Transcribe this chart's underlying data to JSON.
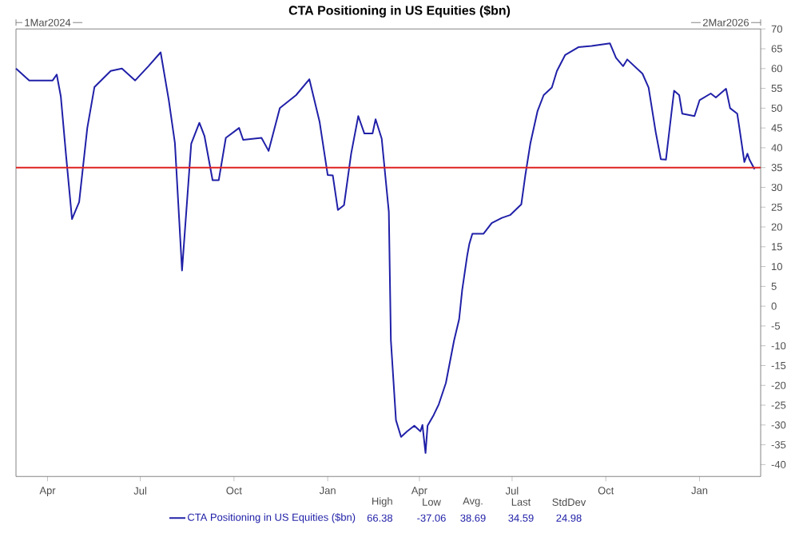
{
  "chart_data": {
    "type": "line",
    "title": "CTA Positioning in US Equities ($bn)",
    "xlim": [
      "2024-03-01",
      "2026-03-02"
    ],
    "ylim": [
      -43,
      70
    ],
    "xticks": [
      {
        "value": "2024-04-01",
        "label": "Apr"
      },
      {
        "value": "2024-07-01",
        "label": "Jul"
      },
      {
        "value": "2024-10-01",
        "label": "Oct"
      },
      {
        "value": "2025-01-01",
        "label": "Jan"
      },
      {
        "value": "2025-04-01",
        "label": "Apr"
      },
      {
        "value": "2025-07-01",
        "label": "Jul"
      },
      {
        "value": "2025-10-01",
        "label": "Oct"
      },
      {
        "value": "2026-01-01",
        "label": "Jan"
      }
    ],
    "yticks": [
      -40,
      -35,
      -30,
      -25,
      -20,
      -15,
      -10,
      -5,
      0,
      5,
      10,
      15,
      20,
      25,
      30,
      35,
      40,
      45,
      50,
      55,
      60,
      65,
      70
    ],
    "grid": false,
    "legend": "bottom",
    "marker": "none",
    "line_style": "solid",
    "ref_lines": [
      {
        "axis": "y",
        "value": 35,
        "color": "#e02020"
      }
    ],
    "annotations": [
      "1Mar2024",
      "2Mar2026",
      "High",
      "66.38",
      "Low",
      "-37.06",
      "Avg.",
      "38.69",
      "Last",
      "34.59",
      "StdDev",
      "24.98"
    ],
    "x": [
      "2024-03-01",
      "2024-03-14",
      "2024-04-06",
      "2024-04-10",
      "2024-04-14",
      "2024-04-19",
      "2024-04-25",
      "2024-05-02",
      "2024-05-10",
      "2024-05-17",
      "2024-06-02",
      "2024-06-13",
      "2024-06-26",
      "2024-07-09",
      "2024-07-21",
      "2024-07-29",
      "2024-08-04",
      "2024-08-11",
      "2024-08-20",
      "2024-08-28",
      "2024-09-02",
      "2024-09-10",
      "2024-09-16",
      "2024-09-23",
      "2024-10-06",
      "2024-10-10",
      "2024-10-28",
      "2024-11-04",
      "2024-11-15",
      "2024-12-01",
      "2024-12-14",
      "2024-12-24",
      "2025-01-01",
      "2025-01-06",
      "2025-01-11",
      "2025-01-17",
      "2025-01-24",
      "2025-01-31",
      "2025-02-06",
      "2025-02-14",
      "2025-02-17",
      "2025-02-23",
      "2025-03-02",
      "2025-03-04",
      "2025-03-09",
      "2025-03-14",
      "2025-03-20",
      "2025-03-27",
      "2025-04-02",
      "2025-04-04",
      "2025-04-07",
      "2025-04-09",
      "2025-04-15",
      "2025-04-20",
      "2025-04-27",
      "2025-05-05",
      "2025-05-10",
      "2025-05-13",
      "2025-05-18",
      "2025-05-20",
      "2025-05-23",
      "2025-06-03",
      "2025-06-11",
      "2025-06-21",
      "2025-06-29",
      "2025-07-10",
      "2025-07-14",
      "2025-07-19",
      "2025-07-26",
      "2025-08-01",
      "2025-08-09",
      "2025-08-14",
      "2025-08-22",
      "2025-09-04",
      "2025-09-17",
      "2025-10-05",
      "2025-10-11",
      "2025-10-18",
      "2025-10-22",
      "2025-11-06",
      "2025-11-12",
      "2025-11-19",
      "2025-11-24",
      "2025-11-29",
      "2025-12-04",
      "2025-12-07",
      "2025-12-12",
      "2025-12-15",
      "2025-12-27",
      "2026-01-01",
      "2026-01-12",
      "2026-01-17",
      "2026-01-27",
      "2026-01-31",
      "2026-02-07",
      "2026-02-09",
      "2026-02-14",
      "2026-02-17",
      "2026-02-19",
      "2026-02-24"
    ],
    "series": [
      {
        "name": "CTA Positioning in US Equities ($bn)",
        "color": "#2020a8",
        "values": [
          60,
          57,
          57,
          58.5,
          53,
          38.5,
          22,
          26.3,
          45,
          55.3,
          59.4,
          60,
          57,
          60.6,
          64.1,
          52,
          41.2,
          9,
          41,
          46.3,
          43,
          31.8,
          31.8,
          42.5,
          45,
          42,
          42.5,
          39.2,
          50,
          53.3,
          57.3,
          46.6,
          33.1,
          33,
          24.3,
          25.5,
          38.5,
          48,
          43.6,
          43.6,
          47.2,
          42.3,
          23.8,
          -8.6,
          -28.8,
          -33,
          -31.6,
          -30.2,
          -31.6,
          -30,
          -37.06,
          -30.2,
          -27.5,
          -24.8,
          -19.4,
          -8.7,
          -3.3,
          4.1,
          12.9,
          15.7,
          18.3,
          18.3,
          21,
          22.3,
          23,
          25.7,
          33.1,
          41.2,
          49.3,
          53.3,
          55.2,
          59.4,
          63.4,
          65.4,
          65.7,
          66.38,
          62.7,
          60.6,
          62.3,
          58.7,
          55.2,
          43.9,
          37.1,
          37,
          47.9,
          54.4,
          53.3,
          48.6,
          48,
          52,
          53.7,
          52.7,
          54.9,
          50,
          48.6,
          45.2,
          36.4,
          38.5,
          37,
          34.59
        ]
      }
    ]
  }
}
